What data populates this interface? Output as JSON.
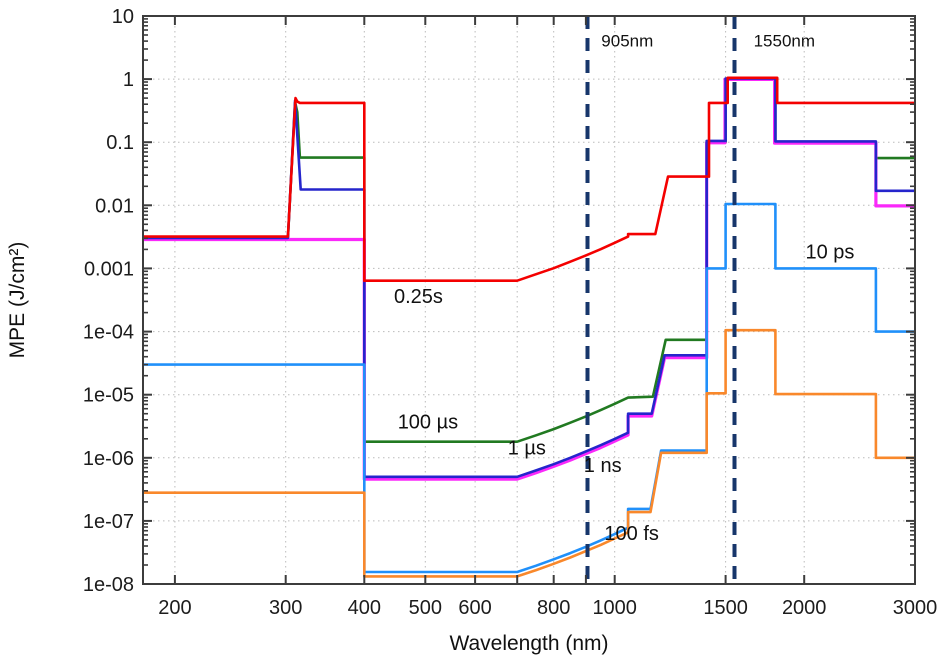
{
  "chart_data": {
    "type": "line",
    "title": "",
    "xlabel": "Wavelength (nm)",
    "ylabel": "MPE (J/cm²)",
    "x_scale": "log",
    "y_scale": "log",
    "xlim": [
      178,
      3000
    ],
    "ylim": [
      1e-08,
      10
    ],
    "grid": true,
    "legend_position": "none",
    "frame_color": "#3c3c3c",
    "grid_color": "#bbbbbb",
    "x_ticks": [
      {
        "value": 200,
        "label": "200",
        "grid": true
      },
      {
        "value": 300,
        "label": "300",
        "grid": true
      },
      {
        "value": 400,
        "label": "400",
        "grid": true
      },
      {
        "value": 500,
        "label": "500",
        "grid": true
      },
      {
        "value": 600,
        "label": "600",
        "grid": true
      },
      {
        "value": 700,
        "label": "",
        "grid": true
      },
      {
        "value": 800,
        "label": "800",
        "grid": true
      },
      {
        "value": 900,
        "label": "",
        "grid": false
      },
      {
        "value": 1000,
        "label": "1000",
        "grid": true
      },
      {
        "value": 1500,
        "label": "1500",
        "grid": true
      },
      {
        "value": 2000,
        "label": "2000",
        "grid": true
      },
      {
        "value": 3000,
        "label": "3000",
        "grid": false
      }
    ],
    "y_ticks": [
      {
        "value": 10,
        "label": "10"
      },
      {
        "value": 1,
        "label": "1"
      },
      {
        "value": 0.1,
        "label": "0.1"
      },
      {
        "value": 0.01,
        "label": "0.01"
      },
      {
        "value": 0.001,
        "label": "0.001"
      },
      {
        "value": 0.0001,
        "label": "1e-04"
      },
      {
        "value": 1e-05,
        "label": "1e-05"
      },
      {
        "value": 1e-06,
        "label": "1e-06"
      },
      {
        "value": 1e-07,
        "label": "1e-07"
      },
      {
        "value": 1e-08,
        "label": "1e-08"
      }
    ],
    "series": [
      {
        "name": "100 µs",
        "color": "#217a21",
        "width": 2.6,
        "points": [
          [
            178,
            0.003
          ],
          [
            302.5,
            0.003
          ],
          [
            310.5,
            0.43
          ],
          [
            313,
            0.3
          ],
          [
            316,
            0.057
          ],
          [
            400,
            0.057
          ],
          [
            400,
            1.8e-06
          ],
          [
            700,
            1.8e-06
          ],
          [
            750,
            2.27e-06
          ],
          [
            800,
            2.85e-06
          ],
          [
            850,
            3.59e-06
          ],
          [
            900,
            4.52e-06
          ],
          [
            950,
            5.69e-06
          ],
          [
            1000,
            7.17e-06
          ],
          [
            1050,
            9e-06
          ],
          [
            1150,
            9.3e-06
          ],
          [
            1205,
            7.4e-05
          ],
          [
            1400,
            7.4e-05
          ],
          [
            1400,
            0.1
          ],
          [
            1500,
            0.1
          ],
          [
            1500,
            1.0
          ],
          [
            1800,
            1.0
          ],
          [
            1800,
            0.1
          ],
          [
            2600,
            0.1
          ],
          [
            2600,
            0.056
          ],
          [
            3000,
            0.056
          ]
        ]
      },
      {
        "name": "1 ns",
        "color": "#fa28fa",
        "width": 3.2,
        "points": [
          [
            178,
            0.00287
          ],
          [
            400,
            0.00287
          ],
          [
            400,
            4.6e-07
          ],
          [
            700,
            4.6e-07
          ],
          [
            750,
            5.8e-07
          ],
          [
            800,
            7.3e-07
          ],
          [
            850,
            9.2e-07
          ],
          [
            900,
            1.16e-06
          ],
          [
            950,
            1.45e-06
          ],
          [
            1000,
            1.83e-06
          ],
          [
            1050,
            2.3e-06
          ],
          [
            1050,
            4.6e-06
          ],
          [
            1145,
            4.6e-06
          ],
          [
            1200,
            3.85e-05
          ],
          [
            1400,
            3.85e-05
          ],
          [
            1400,
            0.098
          ],
          [
            1497,
            0.098
          ],
          [
            1497,
            0.99
          ],
          [
            1795,
            0.99
          ],
          [
            1795,
            0.097
          ],
          [
            2600,
            0.097
          ],
          [
            2600,
            0.0098
          ],
          [
            3000,
            0.0098
          ]
        ]
      },
      {
        "name": "1 µs",
        "color": "#2525cc",
        "width": 2.6,
        "points": [
          [
            178,
            0.00305
          ],
          [
            302.5,
            0.00305
          ],
          [
            310.5,
            0.46
          ],
          [
            317,
            0.0178
          ],
          [
            400,
            0.0178
          ],
          [
            400,
            5e-07
          ],
          [
            700,
            5e-07
          ],
          [
            750,
            6.3e-07
          ],
          [
            800,
            7.9e-07
          ],
          [
            850,
            1e-06
          ],
          [
            900,
            1.26e-06
          ],
          [
            950,
            1.58e-06
          ],
          [
            1000,
            1.99e-06
          ],
          [
            1050,
            2.5e-06
          ],
          [
            1050,
            5e-06
          ],
          [
            1145,
            5e-06
          ],
          [
            1200,
            4.2e-05
          ],
          [
            1400,
            4.2e-05
          ],
          [
            1400,
            0.105
          ],
          [
            1500,
            0.105
          ],
          [
            1500,
            1.02
          ],
          [
            1800,
            1.02
          ],
          [
            1800,
            0.103
          ],
          [
            2600,
            0.103
          ],
          [
            2600,
            0.017
          ],
          [
            3000,
            0.017
          ]
        ]
      },
      {
        "name": "10 ps",
        "color": "#2090fa",
        "width": 2.6,
        "points": [
          [
            178,
            3e-05
          ],
          [
            400,
            3e-05
          ],
          [
            400,
            1.55e-08
          ],
          [
            700,
            1.55e-08
          ],
          [
            750,
            1.95e-08
          ],
          [
            800,
            2.46e-08
          ],
          [
            850,
            3.09e-08
          ],
          [
            900,
            3.89e-08
          ],
          [
            950,
            4.9e-08
          ],
          [
            1000,
            6.17e-08
          ],
          [
            1050,
            7.8e-08
          ],
          [
            1050,
            1.55e-07
          ],
          [
            1140,
            1.55e-07
          ],
          [
            1185,
            1.3e-06
          ],
          [
            1400,
            1.3e-06
          ],
          [
            1400,
            0.001
          ],
          [
            1500,
            0.001
          ],
          [
            1500,
            0.0105
          ],
          [
            1800,
            0.0105
          ],
          [
            1800,
            0.001
          ],
          [
            2600,
            0.001
          ],
          [
            2600,
            0.0001
          ],
          [
            3000,
            0.0001
          ]
        ]
      },
      {
        "name": "100 fs",
        "color": "#f9882b",
        "width": 2.6,
        "points": [
          [
            178,
            2.8e-07
          ],
          [
            400,
            2.8e-07
          ],
          [
            400,
            1.32e-08
          ],
          [
            700,
            1.32e-08
          ],
          [
            750,
            1.66e-08
          ],
          [
            800,
            2.09e-08
          ],
          [
            850,
            2.63e-08
          ],
          [
            900,
            3.32e-08
          ],
          [
            950,
            4.17e-08
          ],
          [
            1000,
            5.25e-08
          ],
          [
            1050,
            6.6e-08
          ],
          [
            1050,
            1.38e-07
          ],
          [
            1140,
            1.38e-07
          ],
          [
            1185,
            1.2e-06
          ],
          [
            1400,
            1.2e-06
          ],
          [
            1400,
            1.05e-05
          ],
          [
            1500,
            1.05e-05
          ],
          [
            1500,
            0.000105
          ],
          [
            1800,
            0.000105
          ],
          [
            1800,
            1.02e-05
          ],
          [
            2600,
            1.02e-05
          ],
          [
            2600,
            1e-06
          ],
          [
            3000,
            1e-06
          ]
        ]
      },
      {
        "name": "0.25s",
        "color": "#f40000",
        "width": 2.6,
        "points": [
          [
            178,
            0.0032
          ],
          [
            302.5,
            0.0032
          ],
          [
            311,
            0.5
          ],
          [
            313,
            0.44
          ],
          [
            316,
            0.42
          ],
          [
            400,
            0.42
          ],
          [
            400,
            0.00064
          ],
          [
            700,
            0.00064
          ],
          [
            750,
            0.00081
          ],
          [
            800,
            0.00101
          ],
          [
            850,
            0.00128
          ],
          [
            900,
            0.00161
          ],
          [
            950,
            0.00202
          ],
          [
            1000,
            0.00255
          ],
          [
            1050,
            0.0032
          ],
          [
            1050,
            0.0035
          ],
          [
            1160,
            0.0035
          ],
          [
            1215,
            0.0285
          ],
          [
            1412,
            0.0285
          ],
          [
            1412,
            0.42
          ],
          [
            1512,
            0.42
          ],
          [
            1512,
            1.05
          ],
          [
            1812,
            1.05
          ],
          [
            1812,
            0.42
          ],
          [
            3000,
            0.42
          ]
        ]
      }
    ],
    "curve_labels": [
      {
        "text": "0.25s",
        "x": 446,
        "y": 0.000285
      },
      {
        "text": "100 µs",
        "x": 452,
        "y": 2.9e-06
      },
      {
        "text": "1 µs",
        "x": 676,
        "y": 1.12e-06
      },
      {
        "text": "1 ns",
        "x": 893,
        "y": 5.9e-07
      },
      {
        "text": "10 ps",
        "x": 2010,
        "y": 0.00145
      },
      {
        "text": "100 fs",
        "x": 963,
        "y": 5e-08
      }
    ],
    "reference_lines": [
      {
        "x": 905,
        "label": "905nm",
        "label_x": 952,
        "label_y": 3.3,
        "color": "#17366b"
      },
      {
        "x": 1550,
        "label": "1550nm",
        "label_x": 1662,
        "label_y": 3.3,
        "color": "#17366b"
      }
    ]
  }
}
